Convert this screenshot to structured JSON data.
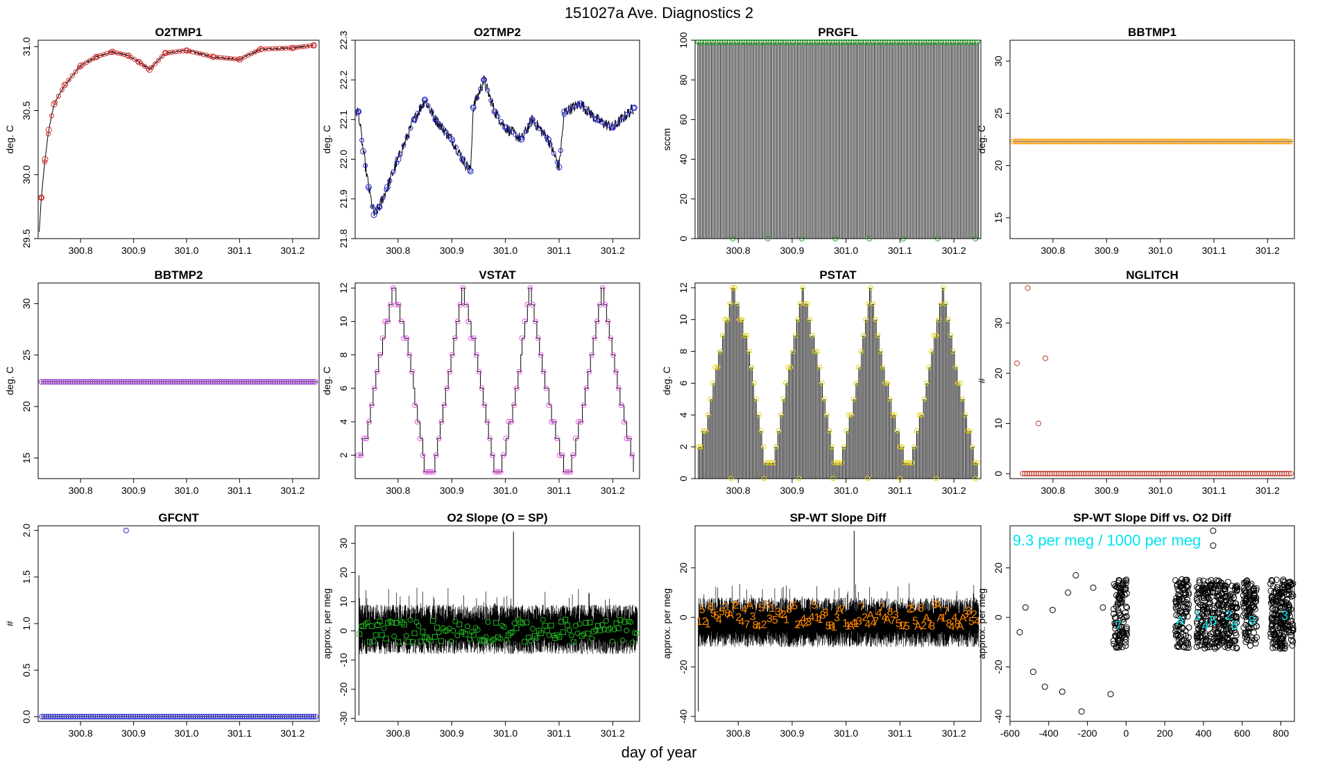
{
  "figure": {
    "title": "151027a   Ave. Diagnostics 2",
    "xlabel": "day of year"
  },
  "chart_data": [
    {
      "type": "line",
      "title": "O2TMP1",
      "ylabel": "deg. C",
      "xlim": [
        300.72,
        301.25
      ],
      "ylim": [
        29.5,
        31.05
      ],
      "xticks": [
        "300.8",
        "300.9",
        "301.0",
        "301.1",
        "301.2"
      ],
      "yticks": [
        "29.5",
        "30.0",
        "30.5",
        "31.0"
      ],
      "marker": "circle",
      "marker_color": "#d62728",
      "series": [
        {
          "name": "averages",
          "x": [
            300.726,
            300.733,
            300.74,
            300.75,
            300.77,
            300.8,
            300.83,
            300.86,
            300.89,
            300.91,
            300.93,
            300.96,
            301.0,
            301.05,
            301.1,
            301.14,
            301.2,
            301.24
          ],
          "y": [
            29.82,
            30.12,
            30.35,
            30.55,
            30.7,
            30.85,
            30.92,
            30.96,
            30.93,
            30.88,
            30.82,
            30.95,
            30.97,
            30.92,
            30.9,
            30.98,
            30.99,
            31.01
          ]
        }
      ]
    },
    {
      "type": "line",
      "title": "O2TMP2",
      "ylabel": "deg. C",
      "xlim": [
        300.72,
        301.25
      ],
      "ylim": [
        21.8,
        22.3
      ],
      "xticks": [
        "300.8",
        "300.9",
        "301.0",
        "301.1",
        "301.2"
      ],
      "yticks": [
        "21.8",
        "21.9",
        "22.0",
        "22.1",
        "22.2",
        "22.3"
      ],
      "marker": "circle",
      "marker_color": "#2222cc",
      "series": [
        {
          "name": "averages",
          "x": [
            300.726,
            300.735,
            300.745,
            300.755,
            300.765,
            300.78,
            300.8,
            300.83,
            300.85,
            300.87,
            300.9,
            300.92,
            300.935,
            300.94,
            300.96,
            300.98,
            301.0,
            301.03,
            301.05,
            301.08,
            301.1,
            301.11,
            301.14,
            301.17,
            301.2,
            301.24
          ],
          "y": [
            22.12,
            22.02,
            21.93,
            21.86,
            21.88,
            21.93,
            22.0,
            22.1,
            22.15,
            22.1,
            22.05,
            22.0,
            21.97,
            22.13,
            22.2,
            22.12,
            22.08,
            22.05,
            22.1,
            22.05,
            21.98,
            22.12,
            22.14,
            22.1,
            22.08,
            22.13
          ]
        }
      ]
    },
    {
      "type": "line",
      "title": "PRGFL",
      "ylabel": "sccm",
      "xlim": [
        300.72,
        301.25
      ],
      "ylim": [
        0,
        100
      ],
      "xticks": [
        "300.8",
        "300.9",
        "301.0",
        "301.1",
        "301.2"
      ],
      "yticks": [
        "0",
        "20",
        "40",
        "60",
        "80",
        "100"
      ],
      "marker": "circle",
      "marker_color": "#2ca02c",
      "pattern": "square-wave 0–99 sccm with drops to 0 about every 0.063 day",
      "high_value": 99,
      "low_value": 0,
      "zero_points_x": [
        300.79,
        300.855,
        300.918,
        300.98,
        301.043,
        301.106,
        301.17,
        301.24
      ]
    },
    {
      "type": "line",
      "title": "BBTMP1",
      "ylabel": "deg. C",
      "xlim": [
        300.72,
        301.25
      ],
      "ylim": [
        13,
        32
      ],
      "xticks": [
        "300.8",
        "300.9",
        "301.0",
        "301.1",
        "301.2"
      ],
      "yticks": [
        "15",
        "20",
        "25",
        "30"
      ],
      "marker": "circle",
      "marker_color": "#ff9900",
      "constant_value": 22.3
    },
    {
      "type": "line",
      "title": "BBTMP2",
      "ylabel": "deg. C",
      "xlim": [
        300.72,
        301.25
      ],
      "ylim": [
        13,
        32
      ],
      "xticks": [
        "300.8",
        "300.9",
        "301.0",
        "301.1",
        "301.2"
      ],
      "yticks": [
        "15",
        "20",
        "25",
        "30"
      ],
      "marker": "circle",
      "marker_color": "#9933cc",
      "constant_value": 22.4
    },
    {
      "type": "line",
      "title": "VSTAT",
      "ylabel": "deg. C",
      "xlim": [
        300.72,
        301.25
      ],
      "ylim": [
        0.6,
        12.3
      ],
      "xticks": [
        "300.8",
        "300.9",
        "301.0",
        "301.1",
        "301.2"
      ],
      "yticks": [
        "2",
        "4",
        "6",
        "8",
        "10",
        "12"
      ],
      "marker": "circle",
      "marker_color": "#dd55dd",
      "pattern": "step sequence 2,1,1,2,3,...,12,12,11,...,1 repeating",
      "series": [
        {
          "name": "steps",
          "x": [
            300.726,
            300.74,
            300.76,
            300.79,
            300.82,
            300.85,
            300.865,
            300.89,
            300.92,
            300.95,
            300.98,
            300.99,
            301.02,
            301.045,
            301.075,
            301.11,
            301.12,
            301.15,
            301.18,
            301.21,
            301.24
          ],
          "y": [
            2,
            3,
            7,
            12,
            8,
            1,
            1,
            6,
            12,
            7,
            1,
            1,
            6,
            12,
            6,
            1,
            1,
            6,
            12,
            6,
            1
          ]
        }
      ]
    },
    {
      "type": "line",
      "title": "PSTAT",
      "ylabel": "deg. C",
      "xlim": [
        300.72,
        301.25
      ],
      "ylim": [
        0,
        12.3
      ],
      "xticks": [
        "300.8",
        "300.9",
        "301.0",
        "301.1",
        "301.2"
      ],
      "yticks": [
        "0",
        "2",
        "4",
        "6",
        "8",
        "10",
        "12"
      ],
      "marker": "circle",
      "marker_color": "#e6d200",
      "pattern": "spikes to 0 between steps; envelope 1..12..1 repeating"
    },
    {
      "type": "scatter",
      "title": "NGLITCH",
      "ylabel": "#",
      "xlim": [
        300.72,
        301.25
      ],
      "ylim": [
        -1,
        38
      ],
      "xticks": [
        "300.8",
        "300.9",
        "301.0",
        "301.1",
        "301.2"
      ],
      "yticks": [
        "0",
        "10",
        "20",
        "30"
      ],
      "marker": "circle",
      "marker_color": "#c0392b",
      "series": [
        {
          "name": "nonzero",
          "x": [
            300.733,
            300.753,
            300.773,
            300.786
          ],
          "y": [
            22,
            37,
            10,
            23
          ]
        }
      ],
      "baseline_value": 0
    },
    {
      "type": "scatter",
      "title": "GFCNT",
      "ylabel": "#",
      "xlim": [
        300.72,
        301.25
      ],
      "ylim": [
        -0.05,
        2.05
      ],
      "xticks": [
        "300.8",
        "300.9",
        "301.0",
        "301.1",
        "301.2"
      ],
      "yticks": [
        "0.0",
        "0.5",
        "1.0",
        "1.5",
        "2.0"
      ],
      "marker": "circle",
      "marker_color": "#2222cc",
      "series": [
        {
          "name": "nonzero",
          "x": [
            300.886
          ],
          "y": [
            2
          ]
        }
      ],
      "baseline_value": 0
    },
    {
      "type": "line",
      "title": "O2 Slope (O = SP)",
      "ylabel": "approx. per meg",
      "xlim": [
        300.72,
        301.25
      ],
      "ylim": [
        -31,
        36
      ],
      "xticks": [
        "300.8",
        "300.9",
        "301.0",
        "301.1",
        "301.2"
      ],
      "yticks": [
        "-30",
        "-20",
        "-10",
        "0",
        "10",
        "20",
        "30"
      ],
      "marker_color": "#22bb22",
      "noise_band": [
        -8,
        9
      ],
      "spikes": [
        {
          "x": 300.727,
          "y": -29
        },
        {
          "x": 300.727,
          "y": 19
        },
        {
          "x": 301.015,
          "y": 34
        }
      ]
    },
    {
      "type": "line",
      "title": "SP-WT Slope Diff",
      "ylabel": "approx. per meg",
      "xlim": [
        300.72,
        301.25
      ],
      "ylim": [
        -42,
        37
      ],
      "xticks": [
        "300.8",
        "300.9",
        "301.0",
        "301.1",
        "301.2"
      ],
      "yticks": [
        "-40",
        "-20",
        "0",
        "20"
      ],
      "marker_color": "#ff8800",
      "noise_band": [
        -12,
        8
      ],
      "spikes": [
        {
          "x": 300.726,
          "y": -38
        },
        {
          "x": 301.015,
          "y": 35
        }
      ],
      "point_labels": [
        "2",
        "3",
        "4",
        "5",
        "8",
        "A",
        "7",
        "1"
      ]
    },
    {
      "type": "scatter",
      "title": "SP-WT Slope Diff vs. O2 Diff",
      "ylabel": "approx. per meg",
      "xlim": [
        -600,
        870
      ],
      "ylim": [
        -42,
        37
      ],
      "xticks": [
        "-600",
        "-400",
        "-200",
        "0",
        "200",
        "400",
        "600",
        "800"
      ],
      "yticks": [
        "-40",
        "-20",
        "0",
        "20"
      ],
      "annotation": "9.3 per meg / 1000 per meg",
      "annotation_color": "#00e5ee",
      "marker": "circle",
      "marker_color": "#000000",
      "clusters_x": [
        -30,
        290,
        400,
        470,
        540,
        640,
        780,
        830
      ],
      "outliers": [
        {
          "x": -550,
          "y": -6
        },
        {
          "x": -520,
          "y": 4
        },
        {
          "x": -480,
          "y": -22
        },
        {
          "x": -420,
          "y": -28
        },
        {
          "x": -380,
          "y": 3
        },
        {
          "x": -330,
          "y": -30
        },
        {
          "x": -300,
          "y": 10
        },
        {
          "x": -260,
          "y": 17
        },
        {
          "x": -230,
          "y": -38
        },
        {
          "x": -170,
          "y": 12
        },
        {
          "x": -120,
          "y": 4
        },
        {
          "x": -80,
          "y": -31
        },
        {
          "x": 450,
          "y": 35
        },
        {
          "x": 450,
          "y": 29
        }
      ],
      "cluster_labels": [
        "7",
        "A",
        "1",
        "4",
        "5",
        "2",
        "6",
        "8",
        "3"
      ]
    }
  ]
}
